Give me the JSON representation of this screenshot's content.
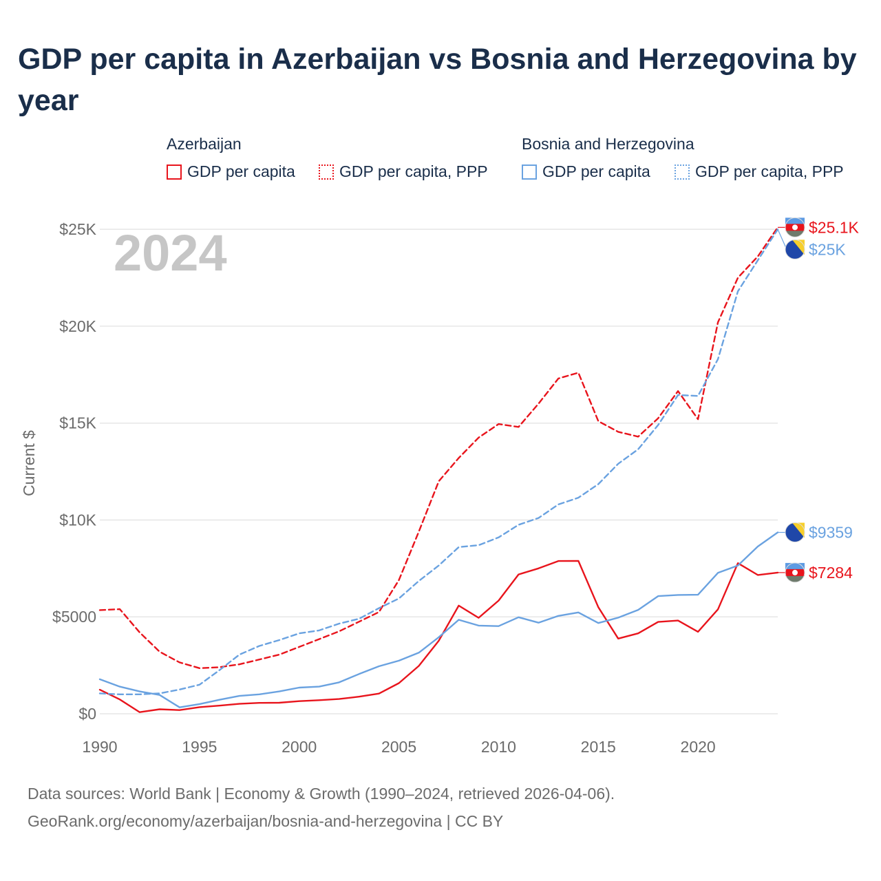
{
  "title": "GDP per capita in Azerbaijan vs Bosnia and Herzegovina by year",
  "legend": {
    "groups": [
      {
        "name": "Azerbaijan",
        "items": [
          "GDP per capita",
          "GDP per capita, PPP"
        ]
      },
      {
        "name": "Bosnia and Herzegovina",
        "items": [
          "GDP per capita",
          "GDP per capita, PPP"
        ]
      }
    ]
  },
  "colors": {
    "azerbaijan": "#e8141c",
    "bosnia": "#6aa2e0",
    "year_watermark": "#c6c6c6",
    "grid": "#e6e6e6",
    "axis_text": "#6b6b6b"
  },
  "footer": {
    "line1": "Data sources: World Bank | Economy & Growth (1990–2024, retrieved 2026-04-06).",
    "line2": "GeoRank.org/economy/azerbaijan/bosnia-and-herzegovina | CC BY"
  },
  "chart_data": {
    "type": "line",
    "title": "GDP per capita in Azerbaijan vs Bosnia and Herzegovina by year",
    "ylabel": "Current $",
    "xlabel": "",
    "year_watermark": "2024",
    "xlim": [
      1990,
      2024
    ],
    "ylim": [
      0,
      26000
    ],
    "x_ticks": [
      1990,
      1995,
      2000,
      2005,
      2010,
      2015,
      2020
    ],
    "y_ticks": [
      {
        "value": 0,
        "label": "$0"
      },
      {
        "value": 5000,
        "label": "$5000"
      },
      {
        "value": 10000,
        "label": "$10K"
      },
      {
        "value": 15000,
        "label": "$15K"
      },
      {
        "value": 20000,
        "label": "$20K"
      },
      {
        "value": 25000,
        "label": "$25K"
      }
    ],
    "x": [
      1990,
      1991,
      1992,
      1993,
      1994,
      1995,
      1996,
      1997,
      1998,
      1999,
      2000,
      2001,
      2002,
      2003,
      2004,
      2005,
      2006,
      2007,
      2008,
      2009,
      2010,
      2011,
      2012,
      2013,
      2014,
      2015,
      2016,
      2017,
      2018,
      2019,
      2020,
      2021,
      2022,
      2023,
      2024
    ],
    "series": [
      {
        "name": "Azerbaijan GDP per capita",
        "country": "azerbaijan",
        "style": "solid",
        "end_label": "$7284",
        "values": [
          1240,
          740,
          80,
          230,
          190,
          340,
          420,
          510,
          560,
          570,
          650,
          700,
          760,
          880,
          1040,
          1580,
          2470,
          3770,
          5580,
          4950,
          5840,
          7190,
          7500,
          7880,
          7890,
          5500,
          3880,
          4150,
          4740,
          4810,
          4230,
          5390,
          7770,
          7160,
          7284
        ]
      },
      {
        "name": "Azerbaijan GDP per capita, PPP",
        "country": "azerbaijan",
        "style": "dashed",
        "end_label": "$25.1K",
        "values": [
          5350,
          5400,
          4200,
          3200,
          2650,
          2350,
          2400,
          2550,
          2800,
          3050,
          3450,
          3850,
          4250,
          4750,
          5250,
          6900,
          9400,
          12000,
          13200,
          14250,
          14950,
          14800,
          16000,
          17300,
          17600,
          15100,
          14550,
          14300,
          15250,
          16650,
          15200,
          20200,
          22500,
          23600,
          25100
        ]
      },
      {
        "name": "Bosnia and Herzegovina GDP per capita",
        "country": "bosnia",
        "style": "solid",
        "end_label": "$9359",
        "values": [
          1780,
          1400,
          1150,
          970,
          330,
          500,
          720,
          920,
          1000,
          1150,
          1350,
          1400,
          1620,
          2050,
          2450,
          2740,
          3150,
          3950,
          4850,
          4550,
          4520,
          4980,
          4700,
          5050,
          5230,
          4680,
          4960,
          5360,
          6070,
          6130,
          6140,
          7270,
          7650,
          8630,
          9359
        ]
      },
      {
        "name": "Bosnia and Herzegovina GDP per capita, PPP",
        "country": "bosnia",
        "style": "dashed",
        "end_label": "$25K",
        "values": [
          1050,
          1000,
          1000,
          1050,
          1250,
          1500,
          2250,
          3050,
          3500,
          3800,
          4150,
          4300,
          4650,
          4900,
          5450,
          5950,
          6850,
          7650,
          8600,
          8700,
          9100,
          9750,
          10100,
          10800,
          11150,
          11850,
          12900,
          13650,
          14900,
          16450,
          16400,
          18300,
          21800,
          23400,
          25000
        ]
      }
    ]
  }
}
